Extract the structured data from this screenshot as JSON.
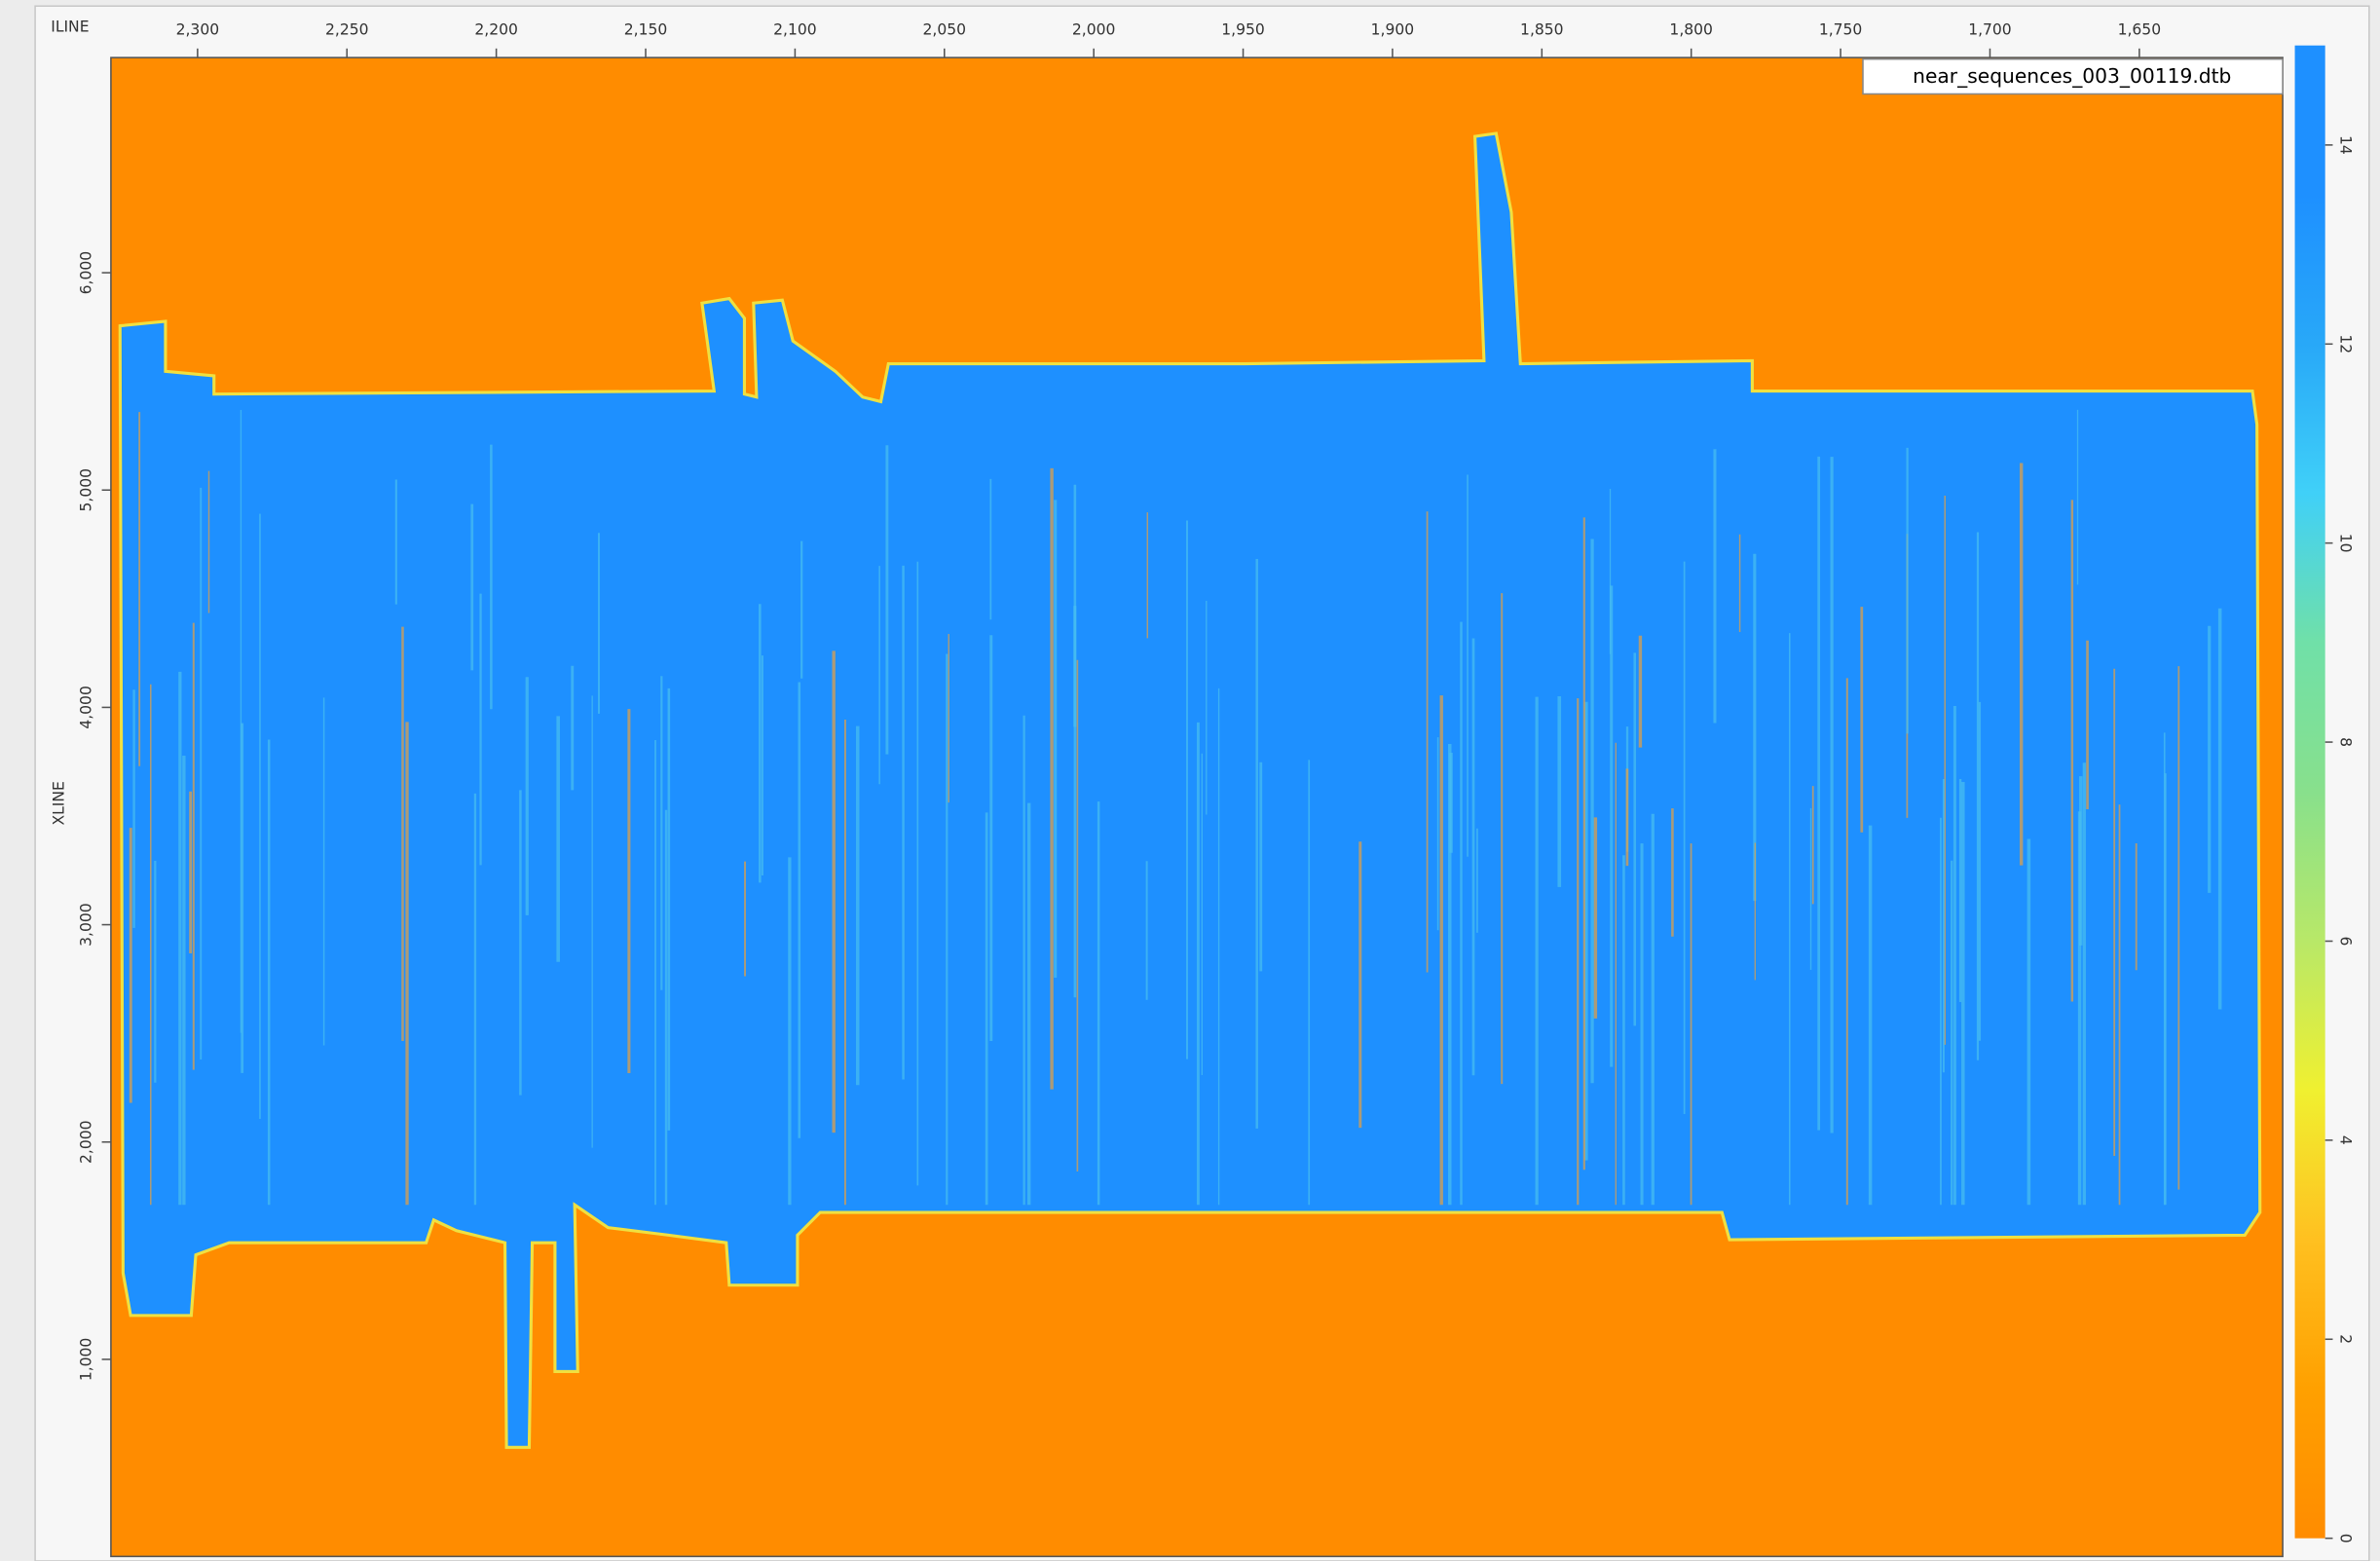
{
  "chart_data": {
    "type": "heatmap",
    "x_label": "ILINE",
    "y_label": "XLINE",
    "annotation": "near_sequences_003_00119.dtb",
    "xlim": [
      2329,
      1602
    ],
    "xticks": [
      {
        "value": 2300,
        "label": "2,300"
      },
      {
        "value": 2250,
        "label": "2,250"
      },
      {
        "value": 2200,
        "label": "2,200"
      },
      {
        "value": 2150,
        "label": "2,150"
      },
      {
        "value": 2100,
        "label": "2,100"
      },
      {
        "value": 2050,
        "label": "2,050"
      },
      {
        "value": 2000,
        "label": "2,000"
      },
      {
        "value": 1950,
        "label": "1,950"
      },
      {
        "value": 1900,
        "label": "1,900"
      },
      {
        "value": 1850,
        "label": "1,850"
      },
      {
        "value": 1800,
        "label": "1,800"
      },
      {
        "value": 1750,
        "label": "1,750"
      },
      {
        "value": 1700,
        "label": "1,700"
      },
      {
        "value": 1650,
        "label": "1,650"
      }
    ],
    "ylim": [
      93,
      6990
    ],
    "yticks": [
      {
        "value": 1000,
        "label": "1,000"
      },
      {
        "value": 2000,
        "label": "2,000"
      },
      {
        "value": 3000,
        "label": "3,000"
      },
      {
        "value": 4000,
        "label": "4,000"
      },
      {
        "value": 5000,
        "label": "5,000"
      },
      {
        "value": 6000,
        "label": "6,000"
      }
    ],
    "colorbar": {
      "lim": [
        0,
        15
      ],
      "ticks": [
        0,
        2,
        4,
        6,
        8,
        10,
        12,
        14
      ],
      "colors": [
        "#ff8c00",
        "#ffa000",
        "#ffc020",
        "#f0f030",
        "#b8e868",
        "#88e08c",
        "#70e0a8",
        "#40d0f8",
        "#28a8f8",
        "#1e90ff",
        "#1e90ff"
      ]
    }
  }
}
